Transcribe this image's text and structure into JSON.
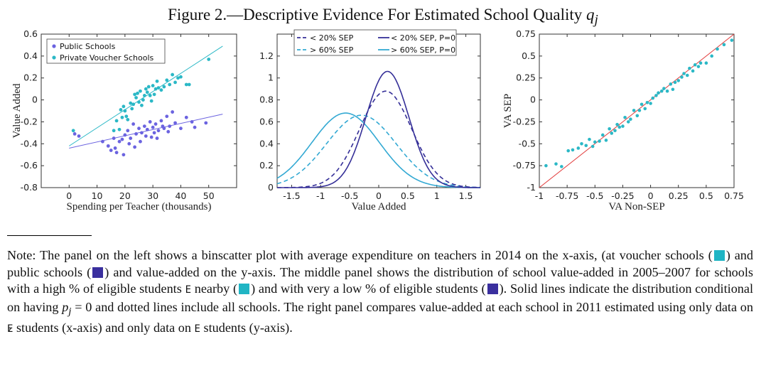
{
  "figure": {
    "title": "Figure 2.—Descriptive Evidence For Estimated School Quality",
    "title_symbol": "q",
    "title_subscript": "j"
  },
  "note": {
    "prefix": "Note:",
    "s1": " The panel on the left shows a binscatter plot with average expenditure on teachers in 2014 on the x-axis, (at voucher schools (",
    "s2": ") and public schools (",
    "s3": ") and value-added on the y-axis. The middle panel shows the distribution of school value-added in 2005–2007 for schools with a high % of eligible students ",
    "sym_E": "E",
    "s4": " nearby (",
    "s5": ") and with very a low % of eligible students (",
    "s6": "). Solid lines indicate the distribution conditional on having ",
    "math_p": "p",
    "math_sub": "j",
    "math_eq": " = 0",
    "s7": " and dotted lines include all schools. The right panel compares value-added at each school in 2011 estimated using only data on ",
    "s8": " students (x-axis) and only data on ",
    "s9": " students (y-axis).",
    "swatch_voucher": "#20b5c4",
    "swatch_public": "#3a2f9e"
  },
  "colors": {
    "teal": "#2bb8c6",
    "violet": "#6b63e0",
    "navy": "#352f98",
    "teal_line": "#33a9d3",
    "red": "#e23b3b"
  },
  "chart_data": [
    {
      "type": "scatter",
      "title": "",
      "xlabel": "Spending per Teacher (thousands)",
      "ylabel": "Value Added",
      "xlim": [
        -10,
        60
      ],
      "ylim": [
        -0.8,
        0.6
      ],
      "xticks": [
        0,
        10,
        20,
        30,
        40,
        50
      ],
      "yticks": [
        -0.8,
        -0.6,
        -0.4,
        -0.2,
        0,
        0.2,
        0.4,
        0.6
      ],
      "legend_position": "top-left",
      "grid": false,
      "series": [
        {
          "name": "Public Schools",
          "color": "#6b63e0",
          "x": [
            2,
            3.5,
            12,
            14,
            15,
            16,
            16.5,
            17,
            18,
            19,
            19.5,
            20,
            21,
            21.5,
            22,
            23,
            23.5,
            24,
            25,
            25.5,
            26,
            27,
            27.5,
            28,
            29,
            29.5,
            30,
            30.5,
            31,
            31.5,
            32,
            33,
            33.5,
            34,
            35,
            35.5,
            36,
            37,
            38,
            40,
            42,
            44,
            45,
            49
          ],
          "y": [
            -0.31,
            -0.33,
            -0.38,
            -0.42,
            -0.46,
            -0.35,
            -0.44,
            -0.48,
            -0.38,
            -0.36,
            -0.5,
            -0.32,
            -0.28,
            -0.4,
            -0.35,
            -0.22,
            -0.43,
            -0.31,
            -0.26,
            -0.38,
            -0.3,
            -0.24,
            -0.33,
            -0.27,
            -0.2,
            -0.34,
            -0.25,
            -0.3,
            -0.22,
            -0.35,
            -0.28,
            -0.19,
            -0.24,
            -0.26,
            -0.15,
            -0.29,
            -0.24,
            -0.11,
            -0.21,
            -0.26,
            -0.16,
            -0.2,
            -0.25,
            -0.21
          ]
        },
        {
          "name": "Private Voucher Schools",
          "color": "#2bb8c6",
          "x": [
            1.5,
            16,
            17,
            18,
            18.5,
            19,
            19.5,
            20,
            20.5,
            21,
            22,
            22.5,
            23,
            23.5,
            24,
            24.5,
            25,
            25.5,
            26,
            26.5,
            27,
            27.5,
            28,
            28.5,
            29,
            29.5,
            30,
            30.5,
            31,
            31.5,
            32,
            33,
            34,
            35,
            36,
            37,
            38,
            39,
            40,
            42,
            43,
            50
          ],
          "y": [
            -0.28,
            -0.28,
            -0.19,
            -0.27,
            -0.09,
            -0.16,
            -0.06,
            -0.1,
            -0.15,
            -0.18,
            -0.03,
            -0.08,
            -0.04,
            0.05,
            0.02,
            0.06,
            -0.02,
            0.08,
            -0.05,
            0.0,
            0.04,
            0.1,
            0.07,
            0.12,
            0.04,
            -0.01,
            0.13,
            0.05,
            0.1,
            0.17,
            0.11,
            0.09,
            0.12,
            0.18,
            0.14,
            0.23,
            0.16,
            0.2,
            0.21,
            0.14,
            0.14,
            0.37
          ]
        }
      ],
      "fit_lines": [
        {
          "series": "Public Schools",
          "x": [
            0,
            55
          ],
          "y": [
            -0.44,
            -0.13
          ]
        },
        {
          "series": "Private Voucher Schools",
          "x": [
            0,
            55
          ],
          "y": [
            -0.42,
            0.49
          ]
        }
      ]
    },
    {
      "type": "line",
      "title": "",
      "xlabel": "Value Added",
      "ylabel": "",
      "xlim": [
        -1.75,
        1.75
      ],
      "ylim": [
        0,
        1.4
      ],
      "xticks": [
        -1.5,
        -1,
        -0.5,
        0,
        0.5,
        1,
        1.5
      ],
      "yticks": [
        0,
        0.2,
        0.4,
        0.6,
        0.8,
        1,
        1.2
      ],
      "legend_position": "top",
      "grid": false,
      "series": [
        {
          "name": "< 20% SEP",
          "style": "dashed",
          "color": "#352f98",
          "mean": 0.12,
          "sd": 0.45,
          "peak": 0.88
        },
        {
          "name": "< 20% SEP, P=0",
          "style": "solid",
          "color": "#352f98",
          "mean": 0.15,
          "sd": 0.37,
          "peak": 1.06
        },
        {
          "name": "> 60% SEP",
          "style": "dashed",
          "color": "#33a9d3",
          "mean": -0.3,
          "sd": 0.6,
          "peak": 0.66
        },
        {
          "name": "> 60% SEP, P=0",
          "style": "solid",
          "color": "#33a9d3",
          "mean": -0.57,
          "sd": 0.58,
          "peak": 0.68
        }
      ]
    },
    {
      "type": "scatter",
      "title": "",
      "xlabel": "VA Non-SEP",
      "ylabel": "VA SEP",
      "xlim": [
        -1,
        0.75
      ],
      "ylim": [
        -1,
        0.75
      ],
      "xticks": [
        -1,
        -0.75,
        -0.5,
        -0.25,
        0,
        0.25,
        0.5,
        0.75
      ],
      "yticks": [
        -1,
        -0.75,
        -0.5,
        -0.25,
        0,
        0.25,
        0.5,
        0.75
      ],
      "grid": false,
      "reference_line": {
        "x": [
          -1,
          0.75
        ],
        "y": [
          -1,
          0.75
        ],
        "color": "#e23b3b"
      },
      "series": [
        {
          "name": "",
          "color": "#2bb8c6",
          "x": [
            -0.94,
            -0.85,
            -0.8,
            -0.74,
            -0.7,
            -0.65,
            -0.62,
            -0.58,
            -0.55,
            -0.52,
            -0.5,
            -0.46,
            -0.43,
            -0.4,
            -0.37,
            -0.35,
            -0.32,
            -0.3,
            -0.28,
            -0.25,
            -0.23,
            -0.2,
            -0.18,
            -0.15,
            -0.12,
            -0.1,
            -0.08,
            -0.05,
            -0.03,
            0.0,
            0.02,
            0.05,
            0.07,
            0.1,
            0.12,
            0.15,
            0.18,
            0.2,
            0.22,
            0.25,
            0.28,
            0.3,
            0.33,
            0.35,
            0.38,
            0.4,
            0.43,
            0.45,
            0.5,
            0.55,
            0.6,
            0.66,
            0.73
          ],
          "y": [
            -0.75,
            -0.73,
            -0.76,
            -0.58,
            -0.57,
            -0.55,
            -0.5,
            -0.52,
            -0.45,
            -0.53,
            -0.48,
            -0.47,
            -0.4,
            -0.46,
            -0.33,
            -0.38,
            -0.35,
            -0.28,
            -0.31,
            -0.3,
            -0.2,
            -0.25,
            -0.22,
            -0.12,
            -0.18,
            -0.12,
            -0.05,
            -0.1,
            -0.03,
            -0.04,
            0.02,
            0.05,
            0.08,
            0.1,
            0.13,
            0.1,
            0.18,
            0.12,
            0.2,
            0.22,
            0.26,
            0.3,
            0.28,
            0.36,
            0.33,
            0.4,
            0.38,
            0.42,
            0.42,
            0.5,
            0.58,
            0.63,
            0.68
          ]
        }
      ]
    }
  ]
}
